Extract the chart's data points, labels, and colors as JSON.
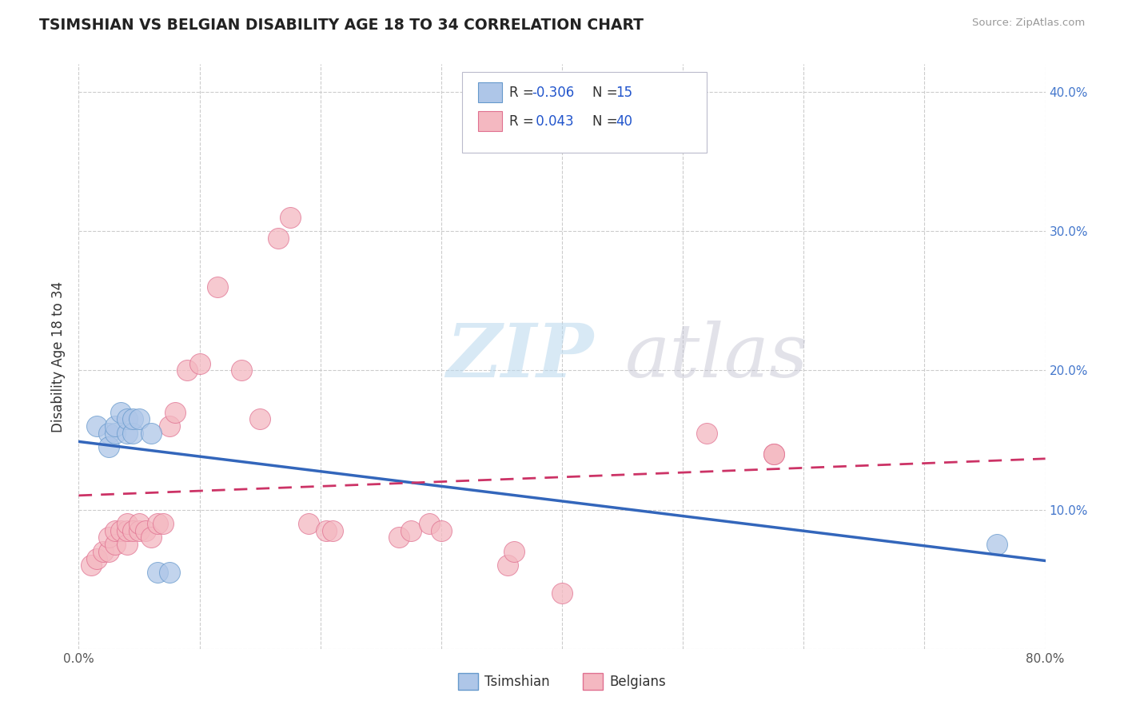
{
  "title": "TSIMSHIAN VS BELGIAN DISABILITY AGE 18 TO 34 CORRELATION CHART",
  "source_text": "Source: ZipAtlas.com",
  "ylabel": "Disability Age 18 to 34",
  "xlim": [
    0.0,
    0.8
  ],
  "ylim": [
    0.0,
    0.42
  ],
  "xtick_vals": [
    0.0,
    0.1,
    0.2,
    0.3,
    0.4,
    0.5,
    0.6,
    0.7,
    0.8
  ],
  "ytick_vals": [
    0.0,
    0.1,
    0.2,
    0.3,
    0.4
  ],
  "ytick_labels": [
    "",
    "10.0%",
    "20.0%",
    "30.0%",
    "40.0%"
  ],
  "grid_color": "#cccccc",
  "background_color": "#ffffff",
  "watermark_zip_color": "#c8dff0",
  "watermark_atlas_color": "#c8c8d8",
  "tsimshian_color": "#aec6e8",
  "belgian_color": "#f4b8c1",
  "tsimshian_edge": "#6699cc",
  "belgian_edge": "#e07090",
  "trend_tsimshian_color": "#3366bb",
  "trend_belgian_color": "#cc3366",
  "tsimshian_x": [
    0.015,
    0.025,
    0.025,
    0.03,
    0.03,
    0.035,
    0.04,
    0.04,
    0.045,
    0.045,
    0.05,
    0.06,
    0.065,
    0.075,
    0.76
  ],
  "tsimshian_y": [
    0.16,
    0.155,
    0.145,
    0.155,
    0.16,
    0.17,
    0.155,
    0.165,
    0.155,
    0.165,
    0.165,
    0.155,
    0.055,
    0.055,
    0.075
  ],
  "belgian_x": [
    0.01,
    0.015,
    0.02,
    0.025,
    0.025,
    0.03,
    0.03,
    0.035,
    0.04,
    0.04,
    0.04,
    0.045,
    0.05,
    0.05,
    0.055,
    0.06,
    0.065,
    0.07,
    0.075,
    0.08,
    0.09,
    0.1,
    0.115,
    0.135,
    0.15,
    0.165,
    0.175,
    0.19,
    0.205,
    0.21,
    0.265,
    0.275,
    0.29,
    0.3,
    0.355,
    0.36,
    0.4,
    0.52,
    0.575,
    0.575
  ],
  "belgian_y": [
    0.06,
    0.065,
    0.07,
    0.07,
    0.08,
    0.075,
    0.085,
    0.085,
    0.075,
    0.085,
    0.09,
    0.085,
    0.085,
    0.09,
    0.085,
    0.08,
    0.09,
    0.09,
    0.16,
    0.17,
    0.2,
    0.205,
    0.26,
    0.2,
    0.165,
    0.295,
    0.31,
    0.09,
    0.085,
    0.085,
    0.08,
    0.085,
    0.09,
    0.085,
    0.06,
    0.07,
    0.04,
    0.155,
    0.14,
    0.14
  ],
  "r1": "-0.306",
  "n1": "15",
  "r2": "0.043",
  "n2": "40"
}
